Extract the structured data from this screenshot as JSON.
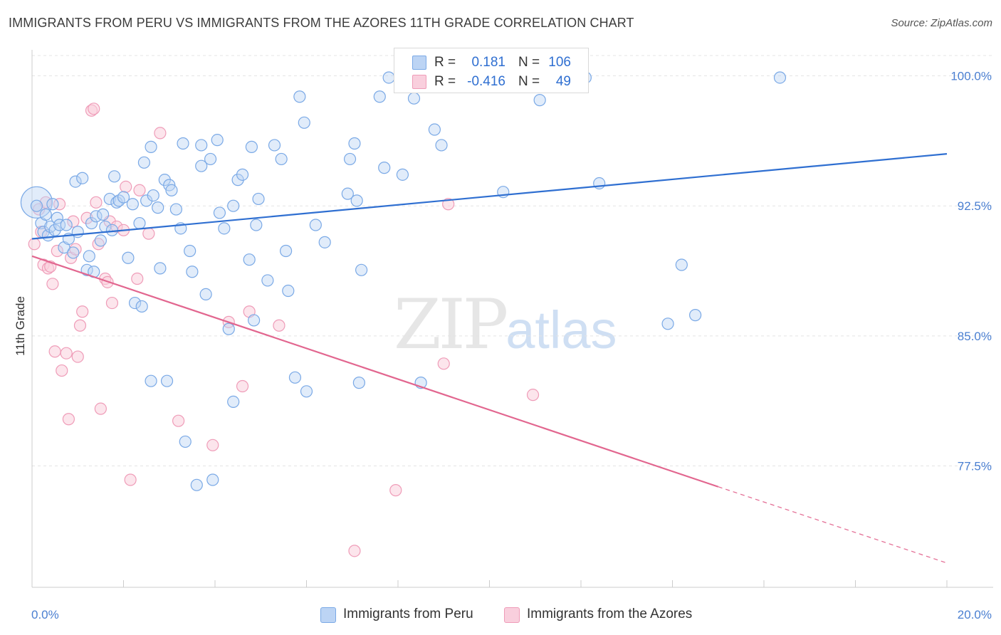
{
  "title": "IMMIGRANTS FROM PERU VS IMMIGRANTS FROM THE AZORES 11TH GRADE CORRELATION CHART",
  "source": "Source: ZipAtlas.com",
  "watermark": {
    "zip": "ZIP",
    "atlas": "atlas"
  },
  "colors": {
    "peru": "#7aa9e6",
    "peru_line": "#2f6fd1",
    "azores": "#ef9cb8",
    "azores_line": "#e2668f",
    "tick": "#4a7fd1"
  },
  "legend_top": {
    "rows": [
      {
        "r_label": "R =",
        "r_value": "0.181",
        "n_label": "N =",
        "n_value": "106"
      },
      {
        "r_label": "R =",
        "r_value": "-0.416",
        "n_label": "N =",
        "n_value": "49"
      }
    ]
  },
  "legend_bottom": [
    "Immigrants from Peru",
    "Immigrants from the Azores"
  ],
  "chart_data": {
    "type": "scatter",
    "title": "IMMIGRANTS FROM PERU VS IMMIGRANTS FROM THE AZORES 11TH GRADE CORRELATION CHART",
    "xlabel": "",
    "ylabel": "11th Grade",
    "xlim": [
      0,
      20
    ],
    "ylim": [
      70.5,
      101.5
    ],
    "x_tick_labels": [
      "0.0%",
      "20.0%"
    ],
    "y_ticks": [
      100.0,
      92.5,
      85.0,
      77.5
    ],
    "y_tick_labels": [
      "100.0%",
      "92.5%",
      "85.0%",
      "77.5%"
    ],
    "grid": true,
    "legend_position": "bottom",
    "series": [
      {
        "name": "Immigrants from Peru",
        "color": "#7aa9e6",
        "trend": {
          "x": [
            0,
            20
          ],
          "y": [
            90.6,
            95.5
          ]
        },
        "points": [
          [
            0.1,
            92.5
          ],
          [
            0.2,
            91.5
          ],
          [
            0.25,
            91.0
          ],
          [
            0.3,
            92.0
          ],
          [
            0.35,
            90.8
          ],
          [
            0.4,
            91.3
          ],
          [
            0.45,
            92.6
          ],
          [
            0.5,
            91.1
          ],
          [
            0.55,
            91.8
          ],
          [
            0.6,
            91.4
          ],
          [
            0.7,
            90.1
          ],
          [
            0.75,
            91.4
          ],
          [
            0.8,
            90.6
          ],
          [
            0.9,
            89.8
          ],
          [
            0.95,
            93.9
          ],
          [
            1.0,
            91.0
          ],
          [
            1.1,
            94.1
          ],
          [
            1.2,
            88.8
          ],
          [
            1.25,
            89.6
          ],
          [
            1.3,
            91.5
          ],
          [
            1.35,
            88.7
          ],
          [
            1.4,
            91.9
          ],
          [
            1.5,
            90.5
          ],
          [
            1.55,
            92.0
          ],
          [
            1.6,
            91.3
          ],
          [
            1.7,
            92.9
          ],
          [
            1.75,
            91.1
          ],
          [
            1.8,
            94.2
          ],
          [
            1.85,
            92.7
          ],
          [
            1.9,
            92.8
          ],
          [
            2.0,
            93.0
          ],
          [
            2.1,
            89.5
          ],
          [
            2.2,
            92.6
          ],
          [
            2.25,
            86.9
          ],
          [
            2.35,
            91.5
          ],
          [
            2.4,
            86.7
          ],
          [
            2.45,
            95.0
          ],
          [
            2.5,
            92.8
          ],
          [
            2.6,
            95.9
          ],
          [
            2.6,
            82.4
          ],
          [
            2.65,
            93.1
          ],
          [
            2.75,
            92.4
          ],
          [
            2.8,
            88.9
          ],
          [
            2.9,
            94.0
          ],
          [
            2.95,
            82.4
          ],
          [
            3.0,
            93.7
          ],
          [
            3.05,
            93.4
          ],
          [
            3.15,
            92.3
          ],
          [
            3.25,
            91.2
          ],
          [
            3.3,
            96.1
          ],
          [
            3.35,
            78.9
          ],
          [
            3.45,
            89.9
          ],
          [
            3.5,
            88.7
          ],
          [
            3.6,
            76.4
          ],
          [
            3.7,
            96.0
          ],
          [
            3.7,
            94.8
          ],
          [
            3.8,
            87.4
          ],
          [
            3.9,
            95.2
          ],
          [
            3.95,
            76.7
          ],
          [
            4.05,
            96.3
          ],
          [
            4.1,
            92.1
          ],
          [
            4.2,
            91.2
          ],
          [
            4.3,
            85.4
          ],
          [
            4.4,
            92.5
          ],
          [
            4.4,
            81.2
          ],
          [
            4.5,
            94.0
          ],
          [
            4.6,
            94.3
          ],
          [
            4.75,
            89.4
          ],
          [
            4.8,
            95.9
          ],
          [
            4.85,
            85.9
          ],
          [
            4.9,
            91.4
          ],
          [
            4.95,
            92.9
          ],
          [
            5.15,
            88.2
          ],
          [
            5.3,
            96.0
          ],
          [
            5.45,
            95.2
          ],
          [
            5.55,
            89.9
          ],
          [
            5.6,
            87.6
          ],
          [
            5.75,
            82.6
          ],
          [
            5.85,
            98.8
          ],
          [
            5.95,
            97.3
          ],
          [
            6.0,
            81.8
          ],
          [
            6.2,
            91.4
          ],
          [
            6.4,
            90.4
          ],
          [
            6.9,
            93.2
          ],
          [
            6.95,
            95.2
          ],
          [
            7.05,
            96.1
          ],
          [
            7.1,
            92.8
          ],
          [
            7.15,
            82.3
          ],
          [
            7.2,
            88.8
          ],
          [
            7.6,
            98.8
          ],
          [
            7.7,
            94.7
          ],
          [
            7.8,
            99.9
          ],
          [
            8.1,
            94.3
          ],
          [
            8.35,
            98.7
          ],
          [
            8.5,
            82.3
          ],
          [
            8.8,
            96.9
          ],
          [
            8.95,
            96.0
          ],
          [
            9.6,
            99.8
          ],
          [
            10.3,
            93.3
          ],
          [
            11.1,
            98.6
          ],
          [
            12.4,
            93.8
          ],
          [
            12.1,
            99.9
          ],
          [
            13.9,
            85.7
          ],
          [
            14.2,
            89.1
          ],
          [
            14.5,
            86.2
          ],
          [
            16.35,
            99.9
          ]
        ]
      },
      {
        "name": "Immigrants from the Azores",
        "color": "#ef9cb8",
        "trend": {
          "x": [
            0,
            15
          ],
          "y": [
            89.6,
            76.3
          ],
          "dashed_to": {
            "x": 20,
            "y": 71.9
          }
        },
        "points": [
          [
            0.05,
            90.3
          ],
          [
            0.15,
            92.3
          ],
          [
            0.2,
            91.0
          ],
          [
            0.25,
            89.1
          ],
          [
            0.3,
            92.7
          ],
          [
            0.35,
            88.9
          ],
          [
            0.4,
            89.0
          ],
          [
            0.45,
            88.0
          ],
          [
            0.5,
            84.1
          ],
          [
            0.55,
            89.9
          ],
          [
            0.6,
            92.6
          ],
          [
            0.65,
            83.0
          ],
          [
            0.75,
            84.0
          ],
          [
            0.8,
            80.2
          ],
          [
            0.85,
            89.5
          ],
          [
            0.9,
            91.6
          ],
          [
            0.95,
            90.0
          ],
          [
            1.0,
            83.8
          ],
          [
            1.05,
            85.6
          ],
          [
            1.1,
            86.4
          ],
          [
            1.2,
            91.8
          ],
          [
            1.3,
            98.0
          ],
          [
            1.35,
            98.1
          ],
          [
            1.4,
            92.7
          ],
          [
            1.45,
            90.3
          ],
          [
            1.5,
            80.8
          ],
          [
            1.6,
            88.3
          ],
          [
            1.65,
            88.1
          ],
          [
            1.7,
            91.6
          ],
          [
            1.75,
            86.9
          ],
          [
            1.85,
            91.3
          ],
          [
            2.0,
            91.1
          ],
          [
            2.05,
            93.6
          ],
          [
            2.15,
            76.7
          ],
          [
            2.3,
            88.3
          ],
          [
            2.35,
            93.4
          ],
          [
            2.55,
            90.9
          ],
          [
            2.8,
            96.7
          ],
          [
            3.2,
            80.1
          ],
          [
            3.95,
            78.7
          ],
          [
            4.3,
            85.8
          ],
          [
            4.6,
            82.1
          ],
          [
            4.75,
            86.4
          ],
          [
            5.4,
            85.6
          ],
          [
            7.05,
            72.6
          ],
          [
            7.95,
            76.1
          ],
          [
            9.0,
            83.4
          ],
          [
            9.1,
            92.6
          ],
          [
            10.95,
            81.6
          ]
        ]
      }
    ]
  }
}
